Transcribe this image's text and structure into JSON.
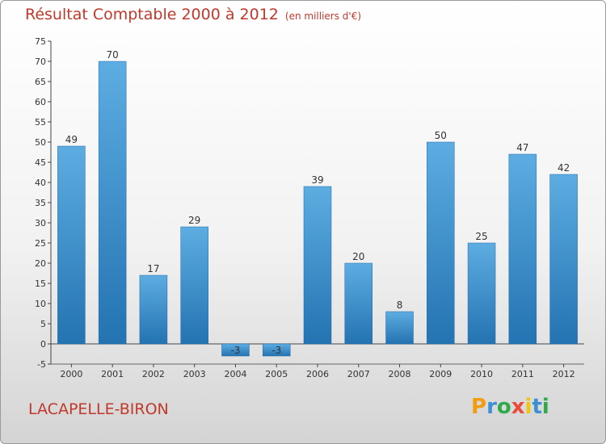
{
  "title": "Résultat Comptable 2000 à 2012",
  "subtitle": "(en milliers d'€)",
  "commune": "LACAPELLE-BIRON",
  "logo": {
    "text": "Proxiti",
    "letters": [
      "P",
      "r",
      "o",
      "x",
      "i",
      "t",
      "i"
    ],
    "colors": [
      "#f39c12",
      "#3b8fd4",
      "#2eaa4a",
      "#e84c3d",
      "#f1c40f",
      "#3b8fd4",
      "#2eaa4a"
    ]
  },
  "colors": {
    "bar_top": "#5dade2",
    "bar_bottom": "#2473b2",
    "title": "#c0392b"
  },
  "chart_data": {
    "type": "bar",
    "categories": [
      "2000",
      "2001",
      "2002",
      "2003",
      "2004",
      "2005",
      "2006",
      "2007",
      "2008",
      "2009",
      "2010",
      "2011",
      "2012"
    ],
    "values": [
      49,
      70,
      17,
      29,
      -3,
      -3,
      39,
      20,
      8,
      50,
      25,
      47,
      42
    ],
    "value_labels": [
      "49",
      "70",
      "17",
      "29",
      "-3",
      "-3",
      "39",
      "20",
      "8",
      "50",
      "25",
      "47",
      "42"
    ],
    "ylim": [
      -5,
      75
    ],
    "yticks": [
      -5,
      0,
      5,
      10,
      15,
      20,
      25,
      30,
      35,
      40,
      45,
      50,
      55,
      60,
      65,
      70,
      75
    ],
    "grid": false,
    "legend": "none"
  }
}
